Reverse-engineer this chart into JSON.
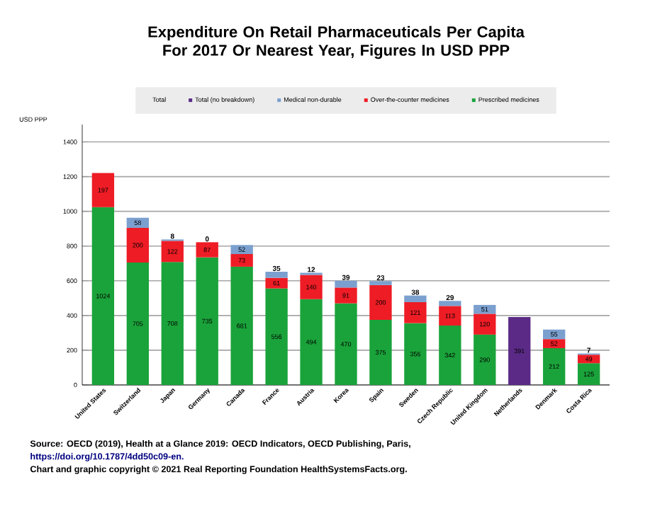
{
  "chart_data": {
    "type": "bar",
    "stacked": true,
    "title": "Expenditure On Retail Pharmaceuticals Per Capita For 2017 Or Nearest Year, Figures In USD PPP",
    "ylabel": "USD PPP",
    "legend_title": "Total",
    "categories": [
      "United States",
      "Switzerland",
      "Japan",
      "Germany",
      "Canada",
      "France",
      "Austria",
      "Korea",
      "Spain",
      "Sweden",
      "Czech Republic",
      "United Kingdom",
      "Netherlands",
      "Denmark",
      "Costa Rica"
    ],
    "series": [
      {
        "name": "Prescribed medicines",
        "color": "#1aa33a",
        "values": [
          1024,
          705,
          708,
          735,
          681,
          556,
          494,
          470,
          375,
          356,
          342,
          290,
          null,
          212,
          125
        ]
      },
      {
        "name": "Over-the-counter medicines",
        "color": "#ee1c25",
        "values": [
          197,
          200,
          122,
          87,
          73,
          61,
          140,
          91,
          200,
          121,
          113,
          120,
          null,
          52,
          49
        ]
      },
      {
        "name": "Medical non-durable",
        "color": "#7ba0cf",
        "values": [
          null,
          58,
          8,
          0,
          52,
          35,
          12,
          39,
          23,
          38,
          29,
          51,
          null,
          55,
          7
        ]
      },
      {
        "name": "Total (no breakdown)",
        "color": "#5b2a86",
        "values": [
          null,
          null,
          null,
          null,
          null,
          null,
          null,
          null,
          null,
          null,
          null,
          null,
          391,
          null,
          null
        ]
      }
    ],
    "ylim": [
      0,
      1500
    ],
    "yticks": [
      0,
      200,
      400,
      600,
      800,
      1000,
      1200,
      1400
    ],
    "grid": "y",
    "legend": "top",
    "data_labels": true,
    "annotations": [
      "Source: OECD (2019), Health at a Glance 2019: OECD Indicators, OECD Publishing, Paris,",
      "https://doi.org/10.1787/4dd50c09-en.",
      "Chart and graphic copyright © 2021 Real Reporting Foundation HealthSystemsFacts.org."
    ]
  }
}
